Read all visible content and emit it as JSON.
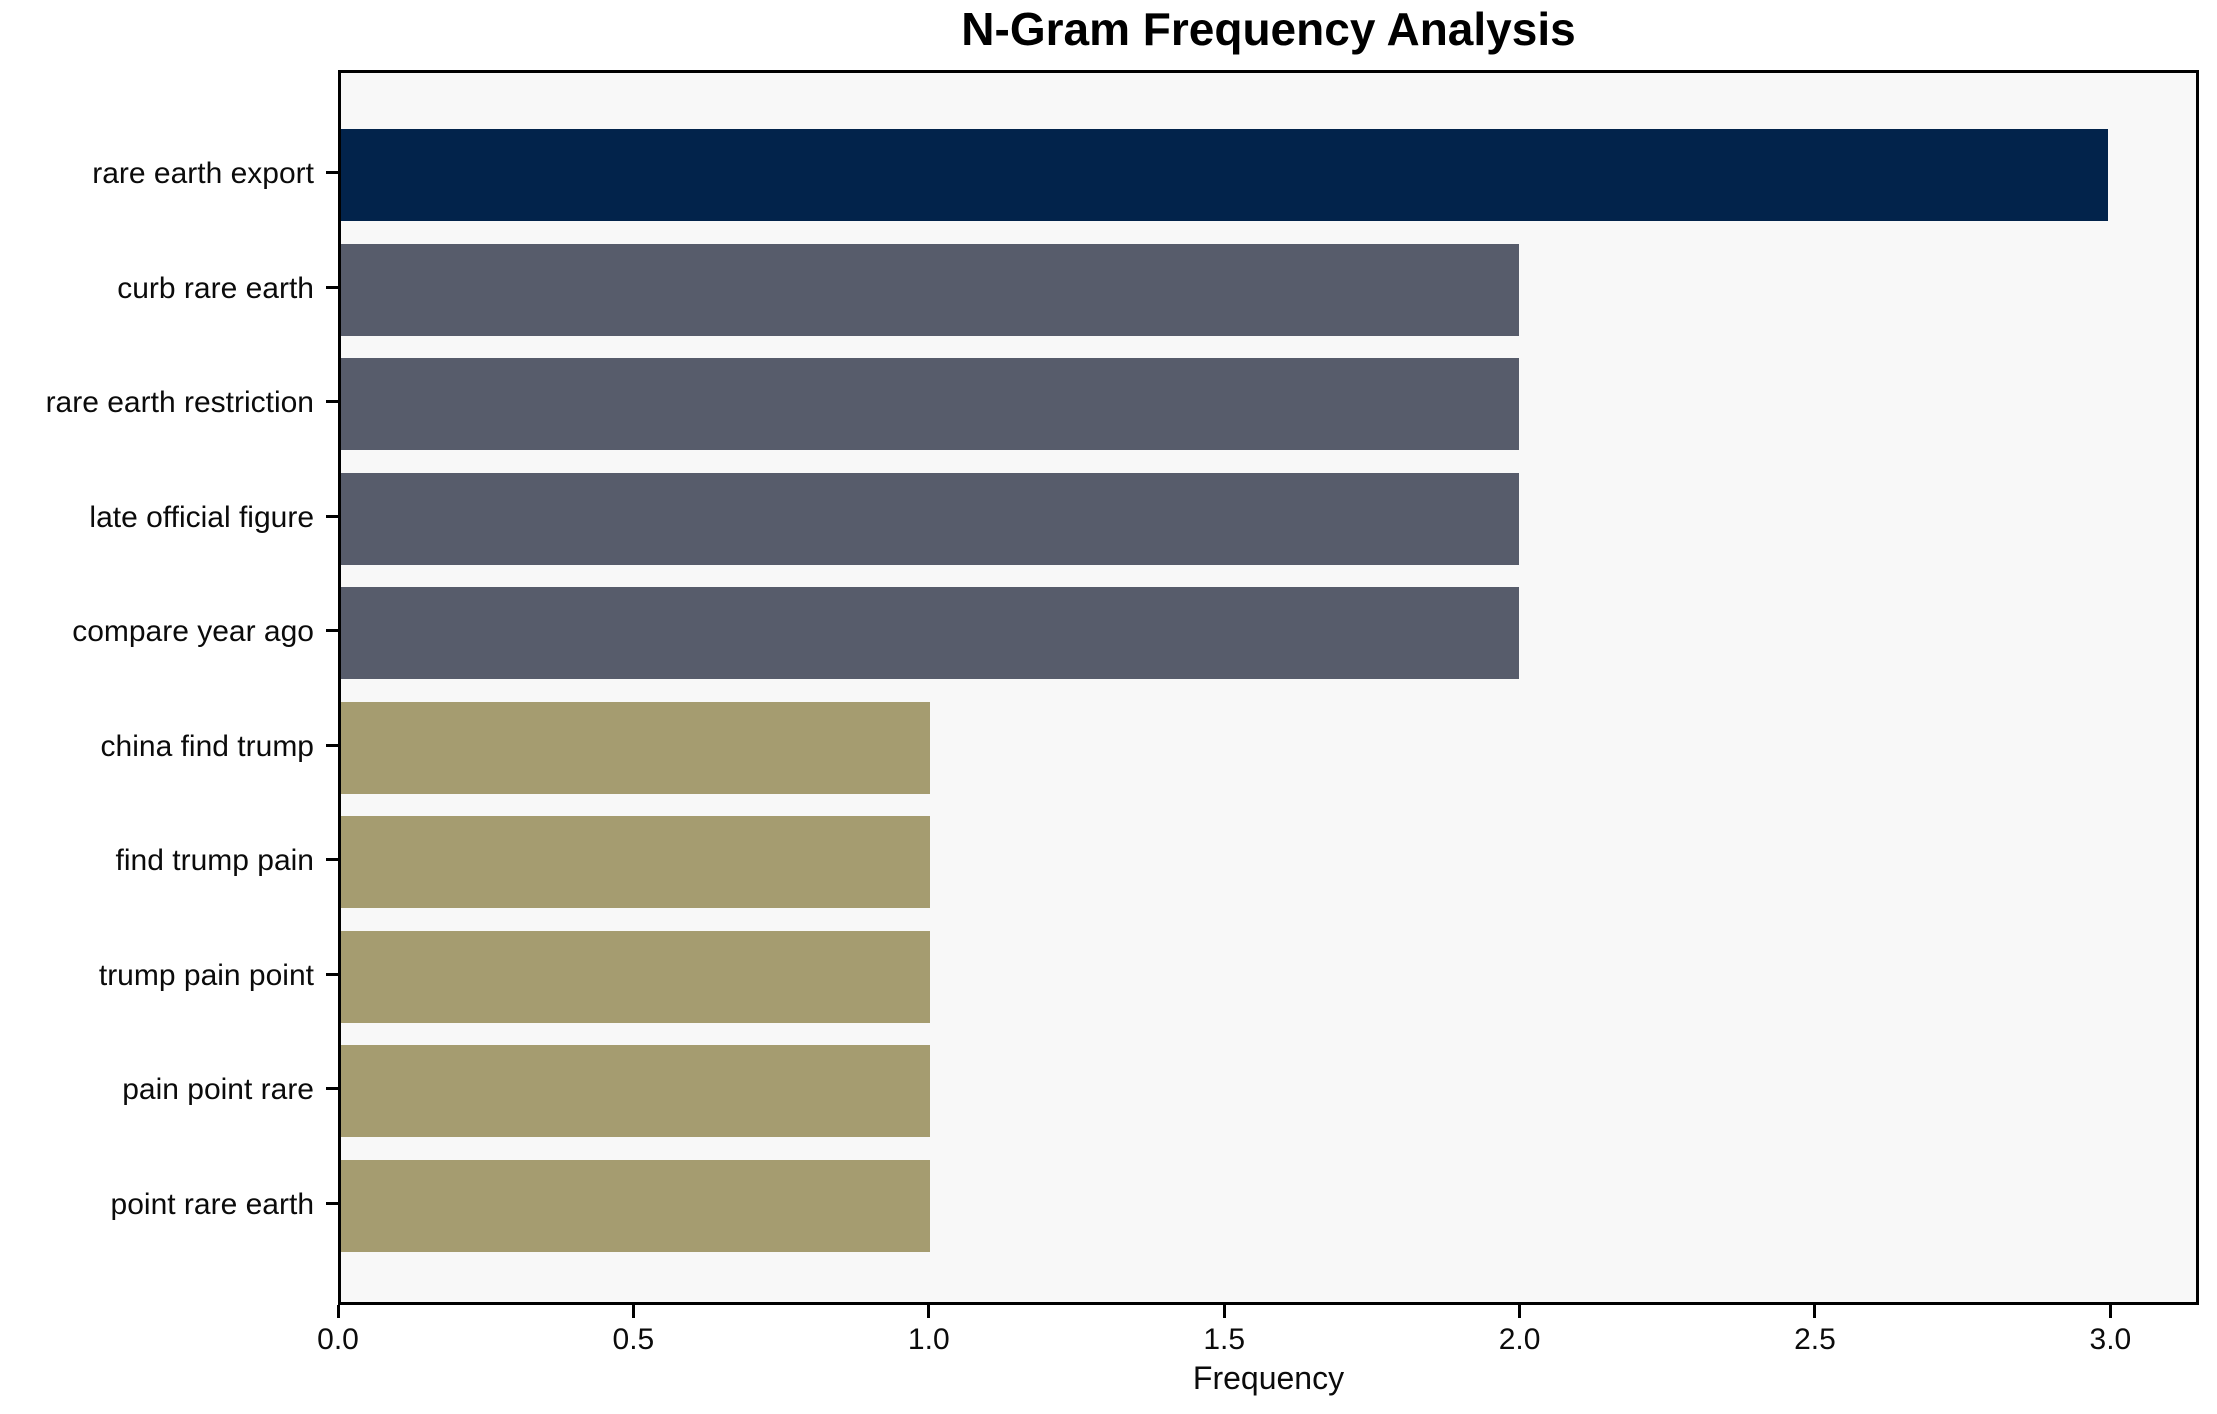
{
  "chart_data": {
    "type": "bar",
    "orientation": "horizontal",
    "title": "N-Gram Frequency Analysis",
    "xlabel": "Frequency",
    "ylabel": "",
    "categories": [
      "rare earth export",
      "curb rare earth",
      "rare earth restriction",
      "late official figure",
      "compare year ago",
      "china find trump",
      "find trump pain",
      "trump pain point",
      "pain point rare",
      "point rare earth"
    ],
    "values": [
      3,
      2,
      2,
      2,
      2,
      1,
      1,
      1,
      1,
      1
    ],
    "bar_colors": [
      "#02234b",
      "#575c6b",
      "#575c6b",
      "#575c6b",
      "#575c6b",
      "#a59c70",
      "#a59c70",
      "#a59c70",
      "#a59c70",
      "#a59c70"
    ],
    "x_ticks": [
      "0.0",
      "0.5",
      "1.0",
      "1.5",
      "2.0",
      "2.5",
      "3.0"
    ],
    "x_tick_values": [
      0,
      0.5,
      1,
      1.5,
      2,
      2.5,
      3
    ],
    "xlim": [
      0,
      3.15
    ],
    "grid": false,
    "legend": false,
    "colors": {
      "value_3_bar": "#02234b",
      "value_2_bar": "#575c6b",
      "value_1_bar": "#a59c70",
      "plot_background": "#f8f8f8",
      "figure_background": "#ffffff",
      "axis_frame": "#000000",
      "text": "#0b0b0b"
    }
  }
}
